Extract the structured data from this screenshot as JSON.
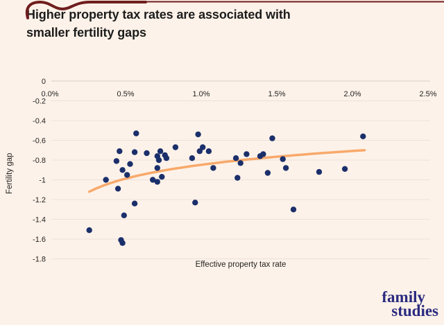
{
  "page": {
    "background": "#fdf2e9",
    "annotation_color": "#6f1d1d"
  },
  "title": {
    "line1": "Higher property tax rates are associated with",
    "line2": "smaller fertility gaps"
  },
  "axes": {
    "x_title": "Effective property tax rate",
    "y_title": "Fertility gap"
  },
  "logo": {
    "line1": "family",
    "line2": "studies",
    "color": "#2b2a80"
  },
  "chart_data": {
    "type": "scatter",
    "title": "Higher property tax rates are associated with smaller fertility gaps",
    "xlabel": "Effective property tax rate",
    "ylabel": "Fertility gap",
    "xlim": [
      0,
      2.5
    ],
    "ylim": [
      -1.8,
      0
    ],
    "grid": "horizontal-only",
    "legend": "none",
    "x_tick_labels": [
      "0.0%",
      "0.5%",
      "1.0%",
      "1.5%",
      "2.0%",
      "2.5%"
    ],
    "x_tick_values": [
      0,
      0.5,
      1.0,
      1.5,
      2.0,
      2.5
    ],
    "y_tick_labels": [
      "0",
      "-0.2",
      "-0.4",
      "-0.6",
      "-0.8",
      "-1",
      "-1.2",
      "-1.4",
      "-1.6",
      "-1.8"
    ],
    "y_tick_values": [
      0,
      -0.2,
      -0.4,
      -0.6,
      -0.8,
      -1.0,
      -1.2,
      -1.4,
      -1.6,
      -1.8
    ],
    "point_color": "#1b2f6b",
    "trend_color": "#f8a96b",
    "gridline_color": "#ece2d9",
    "axisline_color": "#d9cfc7",
    "points": [
      [
        0.57,
        -0.53
      ],
      [
        0.98,
        -0.54
      ],
      [
        2.07,
        -0.56
      ],
      [
        1.47,
        -0.58
      ],
      [
        0.46,
        -0.71
      ],
      [
        0.56,
        -0.72
      ],
      [
        0.64,
        -0.73
      ],
      [
        0.73,
        -0.71
      ],
      [
        0.83,
        -0.67
      ],
      [
        0.99,
        -0.71
      ],
      [
        1.01,
        -0.67
      ],
      [
        1.05,
        -0.71
      ],
      [
        0.44,
        -0.81
      ],
      [
        0.71,
        -0.76
      ],
      [
        0.72,
        -0.8
      ],
      [
        0.76,
        -0.75
      ],
      [
        0.77,
        -0.78
      ],
      [
        0.94,
        -0.78
      ],
      [
        1.23,
        -0.78
      ],
      [
        1.3,
        -0.74
      ],
      [
        1.26,
        -0.83
      ],
      [
        1.39,
        -0.76
      ],
      [
        1.41,
        -0.74
      ],
      [
        1.54,
        -0.79
      ],
      [
        0.53,
        -0.84
      ],
      [
        0.71,
        -0.88
      ],
      [
        1.08,
        -0.88
      ],
      [
        1.56,
        -0.88
      ],
      [
        0.48,
        -0.9
      ],
      [
        1.44,
        -0.93
      ],
      [
        1.78,
        -0.92
      ],
      [
        1.95,
        -0.89
      ],
      [
        0.51,
        -0.95
      ],
      [
        0.74,
        -0.97
      ],
      [
        1.24,
        -0.98
      ],
      [
        0.37,
        -1.0
      ],
      [
        0.68,
        -1.0
      ],
      [
        0.71,
        -1.02
      ],
      [
        0.45,
        -1.09
      ],
      [
        0.56,
        -1.24
      ],
      [
        0.96,
        -1.23
      ],
      [
        0.49,
        -1.36
      ],
      [
        1.61,
        -1.3
      ],
      [
        0.26,
        -1.51
      ],
      [
        0.47,
        -1.61
      ],
      [
        0.48,
        -1.64
      ]
    ],
    "trend": {
      "type": "logarithmic",
      "formula": "y = -0.848 + 0.202 * ln(x)",
      "a": -0.848,
      "b": 0.202,
      "x_start": 0.26,
      "x_end": 2.08
    }
  }
}
